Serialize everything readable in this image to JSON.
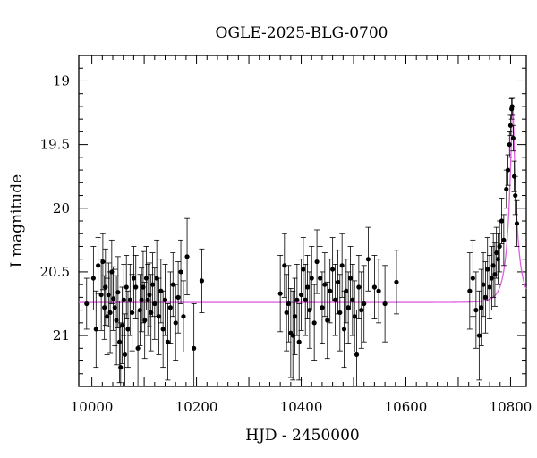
{
  "chart_data": {
    "type": "scatter",
    "title": "OGLE-2025-BLG-0700",
    "xlabel": "HJD - 2450000",
    "ylabel": "I magnitude",
    "xlim": [
      9975,
      10830
    ],
    "ylim": [
      21.4,
      18.8
    ],
    "y_inverted": true,
    "x_ticks": [
      10000,
      10200,
      10400,
      10600,
      10800
    ],
    "y_ticks": [
      19,
      19.5,
      20,
      20.5,
      21
    ],
    "x_tick_labels": [
      "10000",
      "10200",
      "10400",
      "10600",
      "10800"
    ],
    "y_tick_labels": [
      "19",
      "19.5",
      "20",
      "20.5",
      "21"
    ],
    "grid": false,
    "legend": "none",
    "colors": {
      "points": "#000000",
      "model": "#e060e0"
    },
    "series": [
      {
        "type": "scatter_errorbars",
        "points": [
          [
            9990,
            20.75,
            0.2
          ],
          [
            10003,
            20.55,
            0.25
          ],
          [
            10008,
            20.95,
            0.3
          ],
          [
            10012,
            20.45,
            0.22
          ],
          [
            10018,
            20.68,
            0.28
          ],
          [
            10021,
            20.42,
            0.22
          ],
          [
            10024,
            20.78,
            0.25
          ],
          [
            10026,
            20.62,
            0.3
          ],
          [
            10029,
            20.85,
            0.3
          ],
          [
            10032,
            20.68,
            0.25
          ],
          [
            10035,
            20.82,
            0.32
          ],
          [
            10038,
            20.5,
            0.25
          ],
          [
            10041,
            20.71,
            0.25
          ],
          [
            10044,
            20.78,
            0.3
          ],
          [
            10047,
            20.88,
            0.35
          ],
          [
            10050,
            20.66,
            0.28
          ],
          [
            10053,
            21.05,
            0.32
          ],
          [
            10055,
            21.25,
            0.35
          ],
          [
            10058,
            20.92,
            0.3
          ],
          [
            10061,
            20.72,
            0.28
          ],
          [
            10063,
            21.15,
            0.32
          ],
          [
            10066,
            20.62,
            0.25
          ],
          [
            10069,
            20.95,
            0.3
          ],
          [
            10073,
            20.72,
            0.28
          ],
          [
            10077,
            20.82,
            0.3
          ],
          [
            10080,
            20.55,
            0.25
          ],
          [
            10084,
            20.62,
            0.25
          ],
          [
            10088,
            21.1,
            0.3
          ],
          [
            10092,
            20.8,
            0.28
          ],
          [
            10095,
            20.72,
            0.25
          ],
          [
            10098,
            20.62,
            0.28
          ],
          [
            10101,
            20.88,
            0.3
          ],
          [
            10104,
            20.55,
            0.25
          ],
          [
            10107,
            20.72,
            0.28
          ],
          [
            10110,
            20.68,
            0.25
          ],
          [
            10113,
            20.82,
            0.3
          ],
          [
            10116,
            20.6,
            0.25
          ],
          [
            10120,
            20.75,
            0.28
          ],
          [
            10124,
            20.55,
            0.3
          ],
          [
            10128,
            20.85,
            0.3
          ],
          [
            10132,
            20.65,
            0.25
          ],
          [
            10136,
            20.95,
            0.3
          ],
          [
            10140,
            20.72,
            0.28
          ],
          [
            10145,
            21.05,
            0.3
          ],
          [
            10150,
            20.78,
            0.28
          ],
          [
            10155,
            20.6,
            0.25
          ],
          [
            10160,
            20.9,
            0.3
          ],
          [
            10165,
            20.7,
            0.28
          ],
          [
            10170,
            20.5,
            0.25
          ],
          [
            10175,
            20.85,
            0.28
          ],
          [
            10182,
            20.38,
            0.3
          ],
          [
            10195,
            21.1,
            0.35
          ],
          [
            10210,
            20.57,
            0.25
          ],
          [
            10360,
            20.67,
            0.3
          ],
          [
            10368,
            20.45,
            0.25
          ],
          [
            10372,
            20.82,
            0.3
          ],
          [
            10376,
            20.75,
            0.3
          ],
          [
            10380,
            20.98,
            0.35
          ],
          [
            10384,
            21.0,
            0.35
          ],
          [
            10388,
            20.85,
            0.3
          ],
          [
            10392,
            20.72,
            0.28
          ],
          [
            10396,
            21.05,
            0.3
          ],
          [
            10400,
            20.68,
            0.28
          ],
          [
            10404,
            20.48,
            0.25
          ],
          [
            10408,
            20.72,
            0.28
          ],
          [
            10412,
            20.62,
            0.25
          ],
          [
            10416,
            20.8,
            0.3
          ],
          [
            10420,
            20.55,
            0.25
          ],
          [
            10425,
            20.9,
            0.3
          ],
          [
            10430,
            20.42,
            0.25
          ],
          [
            10436,
            20.55,
            0.25
          ],
          [
            10440,
            20.78,
            0.28
          ],
          [
            10445,
            20.6,
            0.25
          ],
          [
            10450,
            20.88,
            0.3
          ],
          [
            10455,
            20.65,
            0.25
          ],
          [
            10460,
            20.48,
            0.25
          ],
          [
            10465,
            20.72,
            0.28
          ],
          [
            10470,
            20.58,
            0.25
          ],
          [
            10474,
            20.82,
            0.3
          ],
          [
            10478,
            20.45,
            0.25
          ],
          [
            10482,
            20.95,
            0.3
          ],
          [
            10486,
            20.65,
            0.25
          ],
          [
            10490,
            20.78,
            0.28
          ],
          [
            10494,
            20.55,
            0.25
          ],
          [
            10498,
            20.72,
            0.28
          ],
          [
            10502,
            20.85,
            0.28
          ],
          [
            10506,
            21.15,
            0.35
          ],
          [
            10510,
            20.62,
            0.25
          ],
          [
            10515,
            20.8,
            0.3
          ],
          [
            10520,
            20.75,
            0.3
          ],
          [
            10528,
            20.4,
            0.25
          ],
          [
            10540,
            20.62,
            0.25
          ],
          [
            10548,
            20.65,
            0.25
          ],
          [
            10560,
            20.75,
            0.3
          ],
          [
            10582,
            20.58,
            0.25
          ],
          [
            10722,
            20.65,
            0.3
          ],
          [
            10728,
            20.55,
            0.3
          ],
          [
            10734,
            20.8,
            0.3
          ],
          [
            10740,
            21.0,
            0.35
          ],
          [
            10744,
            20.78,
            0.3
          ],
          [
            10748,
            20.6,
            0.25
          ],
          [
            10752,
            20.7,
            0.28
          ],
          [
            10756,
            20.48,
            0.25
          ],
          [
            10760,
            20.62,
            0.25
          ],
          [
            10764,
            20.55,
            0.25
          ],
          [
            10767,
            20.45,
            0.25
          ],
          [
            10770,
            20.52,
            0.25
          ],
          [
            10773,
            20.35,
            0.2
          ],
          [
            10776,
            20.4,
            0.2
          ],
          [
            10779,
            20.3,
            0.2
          ],
          [
            10783,
            20.1,
            0.18
          ],
          [
            10787,
            20.25,
            0.2
          ],
          [
            10792,
            19.85,
            0.15
          ],
          [
            10795,
            19.7,
            0.12
          ],
          [
            10798,
            19.5,
            0.1
          ],
          [
            10800,
            19.35,
            0.08
          ],
          [
            10802,
            19.22,
            0.08
          ],
          [
            10803,
            19.2,
            0.07
          ],
          [
            10805,
            19.45,
            0.1
          ],
          [
            10807,
            19.75,
            0.12
          ],
          [
            10809,
            19.9,
            0.15
          ],
          [
            10812,
            20.12,
            0.18
          ]
        ]
      },
      {
        "name": "",
        "type": "model_curve",
        "baseline": 20.74,
        "peak_mag": 19.2,
        "t0": 10804,
        "tE": 18,
        "u0": 0.14,
        "x_range": [
          9975,
          10830
        ]
      }
    ]
  }
}
